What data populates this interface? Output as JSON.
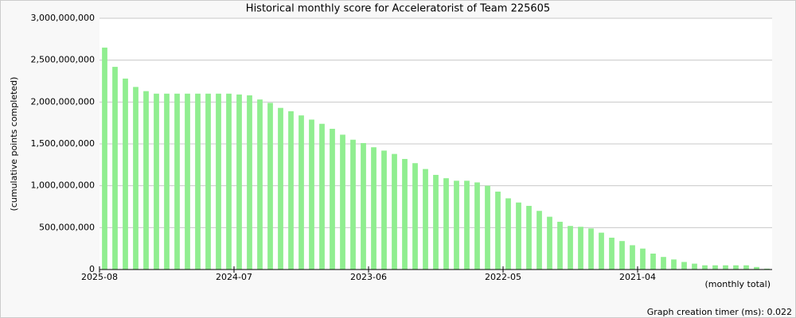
{
  "chart_data": {
    "type": "bar",
    "title": "Historical monthly score for Acceleratorist of Team 225605",
    "y_label": "(cumulative points completed)",
    "x_note": "(monthly total)",
    "footer": "Graph creation timer (ms): 0.022",
    "color": "#90ee90",
    "grid": true,
    "categories": [
      "2025-08",
      null,
      null,
      null,
      null,
      null,
      null,
      null,
      null,
      null,
      null,
      null,
      null,
      "2024-07",
      null,
      null,
      null,
      null,
      null,
      null,
      null,
      null,
      null,
      null,
      null,
      null,
      "2023-06",
      null,
      null,
      null,
      null,
      null,
      null,
      null,
      null,
      null,
      null,
      null,
      null,
      "2022-05",
      null,
      null,
      null,
      null,
      null,
      null,
      null,
      null,
      null,
      null,
      null,
      null,
      "2021-04",
      null,
      null,
      null,
      null,
      null,
      null,
      null,
      null,
      null,
      null,
      null,
      null
    ],
    "values": [
      2650000000,
      2420000000,
      2280000000,
      2180000000,
      2130000000,
      2100000000,
      2100000000,
      2100000000,
      2100000000,
      2100000000,
      2100000000,
      2100000000,
      2100000000,
      2090000000,
      2080000000,
      2030000000,
      1990000000,
      1930000000,
      1890000000,
      1840000000,
      1790000000,
      1740000000,
      1680000000,
      1610000000,
      1550000000,
      1510000000,
      1460000000,
      1420000000,
      1380000000,
      1320000000,
      1270000000,
      1200000000,
      1130000000,
      1090000000,
      1060000000,
      1060000000,
      1040000000,
      1000000000,
      930000000,
      850000000,
      800000000,
      760000000,
      700000000,
      630000000,
      570000000,
      520000000,
      510000000,
      490000000,
      440000000,
      380000000,
      340000000,
      290000000,
      250000000,
      190000000,
      150000000,
      120000000,
      90000000,
      70000000,
      50000000,
      50000000,
      50000000,
      50000000,
      50000000,
      30000000,
      10000000
    ],
    "ylim": [
      0,
      3000000000
    ],
    "yticks": [
      0,
      {
        "value": 500000000,
        "label": "500,000,000"
      },
      {
        "value": 1000000000,
        "label": "1,000,000,000"
      },
      {
        "value": 1500000000,
        "label": "1,500,000,000"
      },
      {
        "value": 2000000000,
        "label": "2,000,000,000"
      },
      {
        "value": 2500000000,
        "label": "2,500,000,000"
      },
      {
        "value": 3000000000,
        "label": "3,000,000,000"
      }
    ]
  }
}
